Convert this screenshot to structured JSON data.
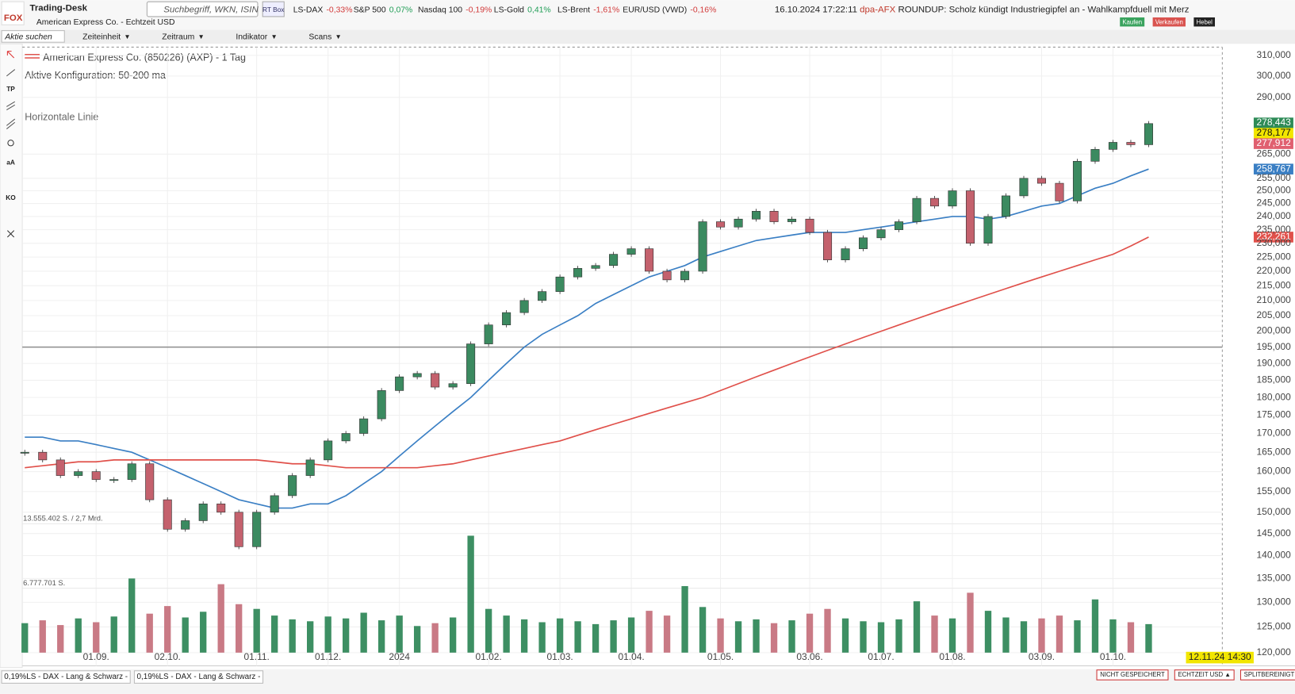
{
  "header": {
    "logo": "FOX",
    "app": "Trading-Desk",
    "search_placeholder": "Suchbegriff, WKN, ISIN",
    "rt_box": "RT Box",
    "tickers": [
      {
        "name": "LS-DAX",
        "change": "-0,33%"
      },
      {
        "name": "S&P 500",
        "change": "0,07%"
      },
      {
        "name": "Nasdaq 100",
        "change": "-0,19%"
      },
      {
        "name": "LS-Gold",
        "change": "0,41%"
      },
      {
        "name": "LS-Brent",
        "change": "-1,61%"
      },
      {
        "name": "EUR/USD (VWD)",
        "change": "-0,16%"
      }
    ],
    "news_time": "16.10.2024 17:22:11",
    "news_source": "dpa-AFX",
    "news_text": "ROUNDUP: Scholz kündigt Industriegipfel an - Wahlkampfduell mit Merz",
    "buttons": [
      "Kaufen",
      "Verkaufen",
      "Hebel"
    ],
    "subtitle": "American Express Co. - Echtzeit USD"
  },
  "toolbar": {
    "search": "Aktie suchen",
    "menus": [
      "Zeiteinheit",
      "Zeitraum",
      "Indikator",
      "Scans"
    ]
  },
  "sidebar": [
    "TP",
    "aA",
    "KO"
  ],
  "chart_data": {
    "type": "candlestick",
    "title": "American Express Co. (850226) (AXP) - 1 Tag",
    "subtitle": "Aktive Konfiguration: 50-200 ma",
    "categories": [
      null,
      null,
      null,
      null,
      "01.09.",
      null,
      null,
      null,
      "02.10.",
      null,
      null,
      null,
      null,
      "01.11.",
      null,
      null,
      null,
      "01.12.",
      null,
      null,
      null,
      "2024",
      null,
      null,
      null,
      null,
      "01.02.",
      null,
      null,
      null,
      "01.03.",
      null,
      null,
      null,
      "01.04.",
      null,
      null,
      null,
      null,
      "01.05.",
      null,
      null,
      null,
      null,
      "03.06.",
      null,
      null,
      null,
      "01.07.",
      null,
      null,
      null,
      "01.08.",
      null,
      null,
      null,
      null,
      "03.09.",
      null,
      null,
      null,
      "01.10.",
      null,
      null
    ],
    "series": [
      {
        "up_color": "#3b8a60",
        "down_color": "#c4616d",
        "values": [
          165,
          163,
          159,
          160,
          158,
          158,
          162,
          153,
          146,
          148,
          152,
          150,
          142,
          150,
          154,
          159,
          163,
          168,
          170,
          174,
          182,
          186,
          187,
          183,
          184,
          196,
          202,
          206,
          210,
          213,
          218,
          221,
          222,
          226,
          228,
          220,
          217,
          220,
          238,
          236,
          239,
          242,
          238,
          239,
          234,
          224,
          228,
          232,
          235,
          238,
          247,
          244,
          250,
          230,
          240,
          248,
          255,
          253,
          246,
          262,
          267,
          270,
          269,
          278.177
        ]
      },
      {
        "color": "#3a7fc4",
        "values": [
          169,
          169,
          168,
          168,
          167,
          166,
          165,
          163,
          161,
          159,
          157,
          155,
          153,
          152,
          151,
          151,
          152,
          152,
          154,
          157,
          160,
          164,
          168,
          172,
          176,
          180,
          185,
          190,
          195,
          199,
          202,
          205,
          209,
          212,
          215,
          218,
          220,
          222,
          225,
          227,
          229,
          231,
          232,
          233,
          234,
          234,
          234,
          235,
          236,
          237,
          238,
          239,
          240,
          240,
          239,
          240,
          242,
          244,
          245,
          248,
          251,
          253,
          256,
          258.767
        ]
      },
      {
        "color": "#e0504a",
        "values": [
          161,
          161.5,
          162,
          162.5,
          162.5,
          163,
          163,
          163,
          163,
          163,
          163,
          163,
          163,
          163,
          162.5,
          162,
          162,
          161.5,
          161,
          161,
          161,
          161,
          161,
          161.5,
          162,
          163,
          164,
          165,
          166,
          167,
          168,
          169.5,
          171,
          172.5,
          174,
          175.5,
          177,
          178.5,
          180,
          182,
          184,
          186,
          188,
          190,
          192,
          194,
          196,
          198,
          200,
          202,
          204,
          206,
          208,
          210,
          212,
          214,
          216,
          218,
          220,
          222,
          224,
          226,
          229,
          232.261
        ]
      }
    ],
    "volume": {
      "axis": "y2",
      "up_color": "#3d8f63",
      "down_color": "#c97a85",
      "values": [
        3100000,
        3400000,
        2900000,
        3600000,
        3200000,
        3800000,
        7800000,
        4100000,
        4900000,
        3700000,
        4300000,
        7200000,
        5100000,
        4600000,
        3900000,
        3500000,
        3300000,
        3800000,
        3600000,
        4200000,
        3400000,
        3900000,
        2800000,
        3100000,
        3700000,
        12300000,
        4600000,
        3900000,
        3500000,
        3200000,
        3600000,
        3300000,
        3000000,
        3400000,
        3700000,
        4400000,
        3900000,
        7000000,
        4800000,
        3600000,
        3300000,
        3500000,
        3100000,
        3400000,
        4100000,
        4600000,
        3600000,
        3300000,
        3200000,
        3500000,
        5400000,
        3900000,
        3600000,
        6300000,
        4400000,
        3700000,
        3300000,
        3600000,
        3900000,
        3400000,
        5600000,
        3500000,
        3200000,
        3000000
      ]
    },
    "y2lim": [
      0,
      63700000
    ],
    "y2ticks": [
      {
        "value": 13555402,
        "label": "13.555.402 S. / 2,7 Mrd."
      },
      {
        "value": 6777701,
        "label": "6.777.701 S."
      }
    ],
    "log_scale": true,
    "grid": true,
    "ylim": [
      120,
      314.1
    ],
    "yticks": [
      {
        "value": 120,
        "label": "120,000"
      },
      {
        "value": 125,
        "label": "125,000"
      },
      {
        "value": 130,
        "label": "130,000"
      },
      {
        "value": 135,
        "label": "135,000"
      },
      {
        "value": 140,
        "label": "140,000"
      },
      {
        "value": 145,
        "label": "145,000"
      },
      {
        "value": 150,
        "label": "150,000"
      },
      {
        "value": 155,
        "label": "155,000"
      },
      {
        "value": 160,
        "label": "160,000"
      },
      {
        "value": 165,
        "label": "165,000"
      },
      {
        "value": 170,
        "label": "170,000"
      },
      {
        "value": 175,
        "label": "175,000"
      },
      {
        "value": 180,
        "label": "180,000"
      },
      {
        "value": 185,
        "label": "185,000"
      },
      {
        "value": 190,
        "label": "190,000"
      },
      {
        "value": 195,
        "label": "195,000"
      },
      {
        "value": 200,
        "label": "200,000"
      },
      {
        "value": 205,
        "label": "205,000"
      },
      {
        "value": 210,
        "label": "210,000"
      },
      {
        "value": 215,
        "label": "215,000"
      },
      {
        "value": 220,
        "label": "220,000"
      },
      {
        "value": 225,
        "label": "225,000"
      },
      {
        "value": 230,
        "label": "230,000"
      },
      {
        "value": 235,
        "label": "235,000"
      },
      {
        "value": 240,
        "label": "240,000"
      },
      {
        "value": 245,
        "label": "245,000"
      },
      {
        "value": 250,
        "label": "250,000"
      },
      {
        "value": 255,
        "label": "255,000"
      },
      {
        "value": 265,
        "label": "265,000"
      },
      {
        "value": 290,
        "label": "290,000"
      },
      {
        "value": 300,
        "label": "300,000"
      },
      {
        "value": 310,
        "label": "310,000"
      }
    ],
    "hline": {
      "value": 195,
      "label": "Horizontale Linie",
      "color": "#8c8c8c"
    },
    "price_markers": {
      "values": [
        278.443,
        278.177,
        277.912,
        258.767,
        232.261
      ],
      "value_labels": [
        "278,443",
        "278,177",
        "277,912",
        "258,767",
        "232,261"
      ],
      "colors": [
        "#2e8b57",
        "#f2e600",
        "#e06070",
        "#3a7fc4",
        "#e0504a"
      ]
    }
  },
  "footer": {
    "status": [
      "NICHT GESPEICHERT",
      "ECHTZEIT USD ▲",
      "SPLITBEREINIGT ▲"
    ],
    "time_marker": "12.11.24 14:30",
    "tabs": [
      "0,19%LS - DAX - Lang & Schwarz -",
      "0,19%LS - DAX - Lang & Schwarz -"
    ]
  }
}
